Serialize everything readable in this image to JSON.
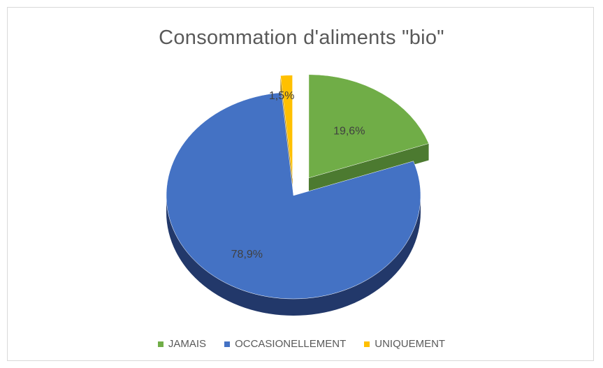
{
  "chart_data": {
    "type": "pie",
    "title": "Consommation d'aliments \"bio\"",
    "series": [
      {
        "name": "JAMAIS",
        "value": 19.6,
        "label": "19,6%",
        "color": "#70ad47",
        "side_color": "#4c7a30"
      },
      {
        "name": "OCCASIONELLEMENT",
        "value": 78.9,
        "label": "78,9%",
        "color": "#4472c4",
        "side_color": "#22386a"
      },
      {
        "name": "UNIQUEMENT",
        "value": 1.5,
        "label": "1,5%",
        "color": "#ffc000",
        "side_color": "#a77b00"
      }
    ],
    "legend_position": "bottom",
    "exploded": true,
    "three_d": true
  }
}
